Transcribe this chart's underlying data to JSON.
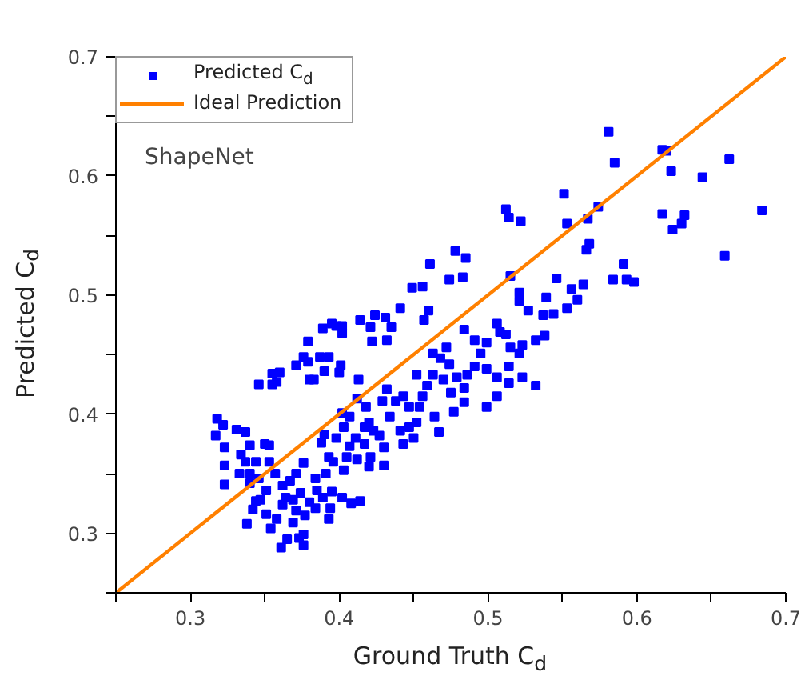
{
  "chart_data": {
    "type": "scatter",
    "xlabel": "Ground Truth C$_{d}$",
    "ylabel": "Predicted C$_{d}$",
    "annotations": [
      "ShapeNet"
    ],
    "xlim": [
      0.25,
      0.7
    ],
    "ylim": [
      0.25,
      0.7
    ],
    "xticks": [
      {
        "value": 0.25,
        "label": null
      },
      0.3,
      {
        "value": 0.35,
        "label": null
      },
      0.4,
      {
        "value": 0.45,
        "label": null
      },
      0.5,
      {
        "value": 0.55,
        "label": null
      },
      0.6,
      {
        "value": 0.65,
        "label": null
      },
      0.7
    ],
    "yticks": [
      {
        "value": 0.25,
        "label": null
      },
      0.3,
      {
        "value": 0.35,
        "label": null
      },
      0.4,
      {
        "value": 0.45,
        "label": null
      },
      0.5,
      {
        "value": 0.55,
        "label": null
      },
      0.6,
      {
        "value": 0.65,
        "label": null
      },
      0.7
    ],
    "grid": false,
    "legend": "top left",
    "series": [
      {
        "name": "Predicted C$_{d}$",
        "marker": "square",
        "color": "#0000ff",
        "x": [
          0.581,
          0.585,
          0.617,
          0.62,
          0.623,
          0.644,
          0.662,
          0.684,
          0.617,
          0.632,
          0.63,
          0.624,
          0.659,
          0.551,
          0.553,
          0.574,
          0.567,
          0.566,
          0.568,
          0.512,
          0.514,
          0.522,
          0.591,
          0.584,
          0.593,
          0.598,
          0.546,
          0.556,
          0.564,
          0.56,
          0.553,
          0.515,
          0.521,
          0.521,
          0.539,
          0.527,
          0.537,
          0.544,
          0.538,
          0.532,
          0.532,
          0.523,
          0.514,
          0.478,
          0.485,
          0.461,
          0.474,
          0.483,
          0.449,
          0.456,
          0.441,
          0.46,
          0.457,
          0.414,
          0.424,
          0.431,
          0.435,
          0.421,
          0.422,
          0.432,
          0.395,
          0.398,
          0.402,
          0.402,
          0.389,
          0.379,
          0.371,
          0.376,
          0.387,
          0.393,
          0.379,
          0.401,
          0.39,
          0.4,
          0.38,
          0.383,
          0.355,
          0.36,
          0.346,
          0.355,
          0.358,
          0.318,
          0.322,
          0.317,
          0.331,
          0.337,
          0.34,
          0.323,
          0.334,
          0.337,
          0.35,
          0.353,
          0.323,
          0.333,
          0.344,
          0.353,
          0.34,
          0.323,
          0.34,
          0.346,
          0.357,
          0.351,
          0.344,
          0.347,
          0.342,
          0.338,
          0.351,
          0.354,
          0.358,
          0.361,
          0.365,
          0.373,
          0.376,
          0.369,
          0.377,
          0.393,
          0.362,
          0.367,
          0.371,
          0.376,
          0.364,
          0.369,
          0.374,
          0.38,
          0.385,
          0.389,
          0.384,
          0.391,
          0.396,
          0.393,
          0.403,
          0.395,
          0.402,
          0.408,
          0.414,
          0.394,
          0.362,
          0.371,
          0.384,
          0.376,
          0.39,
          0.388,
          0.398,
          0.407,
          0.402,
          0.412,
          0.403,
          0.407,
          0.411,
          0.417,
          0.42,
          0.423,
          0.427,
          0.417,
          0.412,
          0.405,
          0.421,
          0.42,
          0.43,
          0.43,
          0.434,
          0.429,
          0.432,
          0.438,
          0.443,
          0.447,
          0.441,
          0.447,
          0.443,
          0.45,
          0.452,
          0.454,
          0.456,
          0.452,
          0.459,
          0.463,
          0.468,
          0.474,
          0.47,
          0.475,
          0.467,
          0.464,
          0.477,
          0.484,
          0.484,
          0.484,
          0.491,
          0.499,
          0.495,
          0.491,
          0.499,
          0.506,
          0.508,
          0.499,
          0.506,
          0.514,
          0.506,
          0.515,
          0.521,
          0.523,
          0.512,
          0.486,
          0.479,
          0.463,
          0.472,
          0.418,
          0.413
        ],
        "values": [
          0.637,
          0.611,
          0.622,
          0.621,
          0.604,
          0.599,
          0.614,
          0.571,
          0.568,
          0.567,
          0.56,
          0.555,
          0.533,
          0.585,
          0.56,
          0.574,
          0.564,
          0.538,
          0.543,
          0.572,
          0.565,
          0.562,
          0.526,
          0.513,
          0.513,
          0.511,
          0.514,
          0.505,
          0.509,
          0.496,
          0.489,
          0.516,
          0.502,
          0.495,
          0.498,
          0.487,
          0.483,
          0.484,
          0.466,
          0.462,
          0.424,
          0.431,
          0.426,
          0.537,
          0.531,
          0.526,
          0.513,
          0.515,
          0.506,
          0.507,
          0.489,
          0.487,
          0.479,
          0.479,
          0.483,
          0.481,
          0.473,
          0.473,
          0.461,
          0.462,
          0.476,
          0.474,
          0.474,
          0.468,
          0.472,
          0.461,
          0.441,
          0.448,
          0.448,
          0.448,
          0.444,
          0.441,
          0.436,
          0.435,
          0.429,
          0.429,
          0.434,
          0.435,
          0.425,
          0.425,
          0.427,
          0.396,
          0.391,
          0.382,
          0.387,
          0.385,
          0.374,
          0.372,
          0.366,
          0.36,
          0.375,
          0.374,
          0.357,
          0.35,
          0.36,
          0.36,
          0.35,
          0.341,
          0.342,
          0.346,
          0.35,
          0.336,
          0.327,
          0.328,
          0.32,
          0.308,
          0.316,
          0.304,
          0.312,
          0.288,
          0.295,
          0.296,
          0.29,
          0.309,
          0.315,
          0.312,
          0.34,
          0.344,
          0.35,
          0.359,
          0.33,
          0.328,
          0.334,
          0.326,
          0.336,
          0.33,
          0.346,
          0.35,
          0.36,
          0.364,
          0.353,
          0.335,
          0.33,
          0.325,
          0.327,
          0.321,
          0.324,
          0.319,
          0.321,
          0.299,
          0.383,
          0.376,
          0.38,
          0.398,
          0.401,
          0.413,
          0.389,
          0.373,
          0.38,
          0.389,
          0.393,
          0.386,
          0.382,
          0.375,
          0.362,
          0.364,
          0.364,
          0.356,
          0.357,
          0.372,
          0.398,
          0.411,
          0.421,
          0.411,
          0.415,
          0.406,
          0.386,
          0.389,
          0.375,
          0.38,
          0.393,
          0.406,
          0.415,
          0.433,
          0.424,
          0.433,
          0.447,
          0.442,
          0.429,
          0.418,
          0.385,
          0.398,
          0.402,
          0.41,
          0.422,
          0.471,
          0.462,
          0.46,
          0.451,
          0.44,
          0.438,
          0.476,
          0.469,
          0.406,
          0.415,
          0.44,
          0.431,
          0.456,
          0.451,
          0.458,
          0.467,
          0.433,
          0.431,
          0.451,
          0.456,
          0.406,
          0.429
        ]
      },
      {
        "name": "Ideal Prediction",
        "type": "line",
        "line_style": "solid",
        "color": "#ff8000",
        "x": [
          0.25,
          0.7
        ],
        "values": [
          0.25,
          0.7
        ]
      }
    ]
  }
}
